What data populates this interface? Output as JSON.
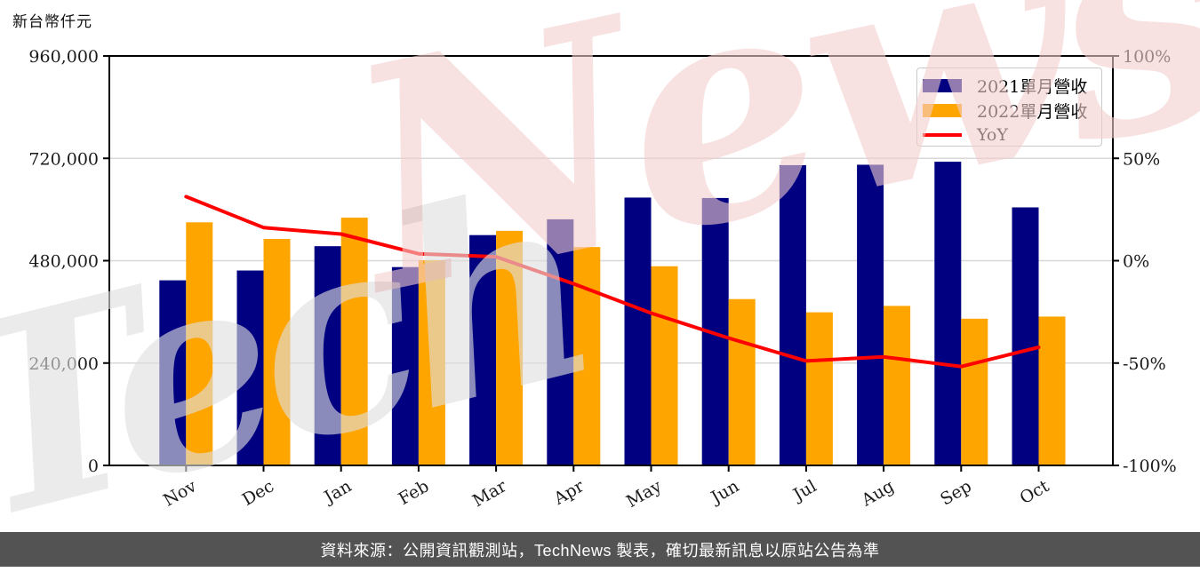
{
  "unit_label": "新台幣仟元",
  "watermark": {
    "part1": "Tech",
    "part2": "News"
  },
  "footer": {
    "text": "資料來源：公開資訊觀測站，TechNews 製表，確切最新訊息以原站公告為準",
    "bg": "#535353",
    "fg": "#ffffff"
  },
  "chart_data": {
    "type": "bar",
    "subtype": "grouped-bars-with-line",
    "title": "",
    "unit_label": "新台幣仟元",
    "categories": [
      "Nov",
      "Dec",
      "Jan",
      "Feb",
      "Mar",
      "Apr",
      "May",
      "Jun",
      "Jul",
      "Aug",
      "Sep",
      "Oct"
    ],
    "series": [
      {
        "name": "2021單月營收",
        "type": "bar",
        "axis": "left",
        "color": "#000080",
        "values": [
          434000,
          457000,
          514000,
          465000,
          540000,
          577000,
          628000,
          627000,
          704000,
          705000,
          712000,
          605000
        ]
      },
      {
        "name": "2022單月營收",
        "type": "bar",
        "axis": "left",
        "color": "#FFA500",
        "values": [
          570000,
          531000,
          581000,
          481000,
          550000,
          512000,
          467000,
          390000,
          359000,
          374000,
          344000,
          349000
        ]
      },
      {
        "name": "YoY",
        "type": "line",
        "axis": "right",
        "color": "#FF0000",
        "values_pct": [
          31.3,
          16.2,
          13.0,
          3.4,
          1.9,
          -11.3,
          -25.6,
          -37.8,
          -49.0,
          -47.0,
          -51.7,
          -42.3
        ]
      }
    ],
    "left_axis": {
      "min": 0,
      "max": 960000,
      "tick_values": [
        0,
        240000,
        480000,
        720000,
        960000
      ],
      "tick_labels": [
        "0",
        "240,000",
        "480,000",
        "720,000",
        "960,000"
      ]
    },
    "right_axis": {
      "min": -100,
      "max": 100,
      "tick_values": [
        -100,
        -50,
        0,
        50,
        100
      ],
      "tick_labels": [
        "-100%",
        "-50%",
        "0%",
        "50%",
        "100%"
      ]
    },
    "grid": "horizontal",
    "legend_position": "top-right",
    "style_colors": {
      "grid": "#d8d8d8",
      "frame": "#000000",
      "tick_text": "#1a1a1a"
    }
  }
}
